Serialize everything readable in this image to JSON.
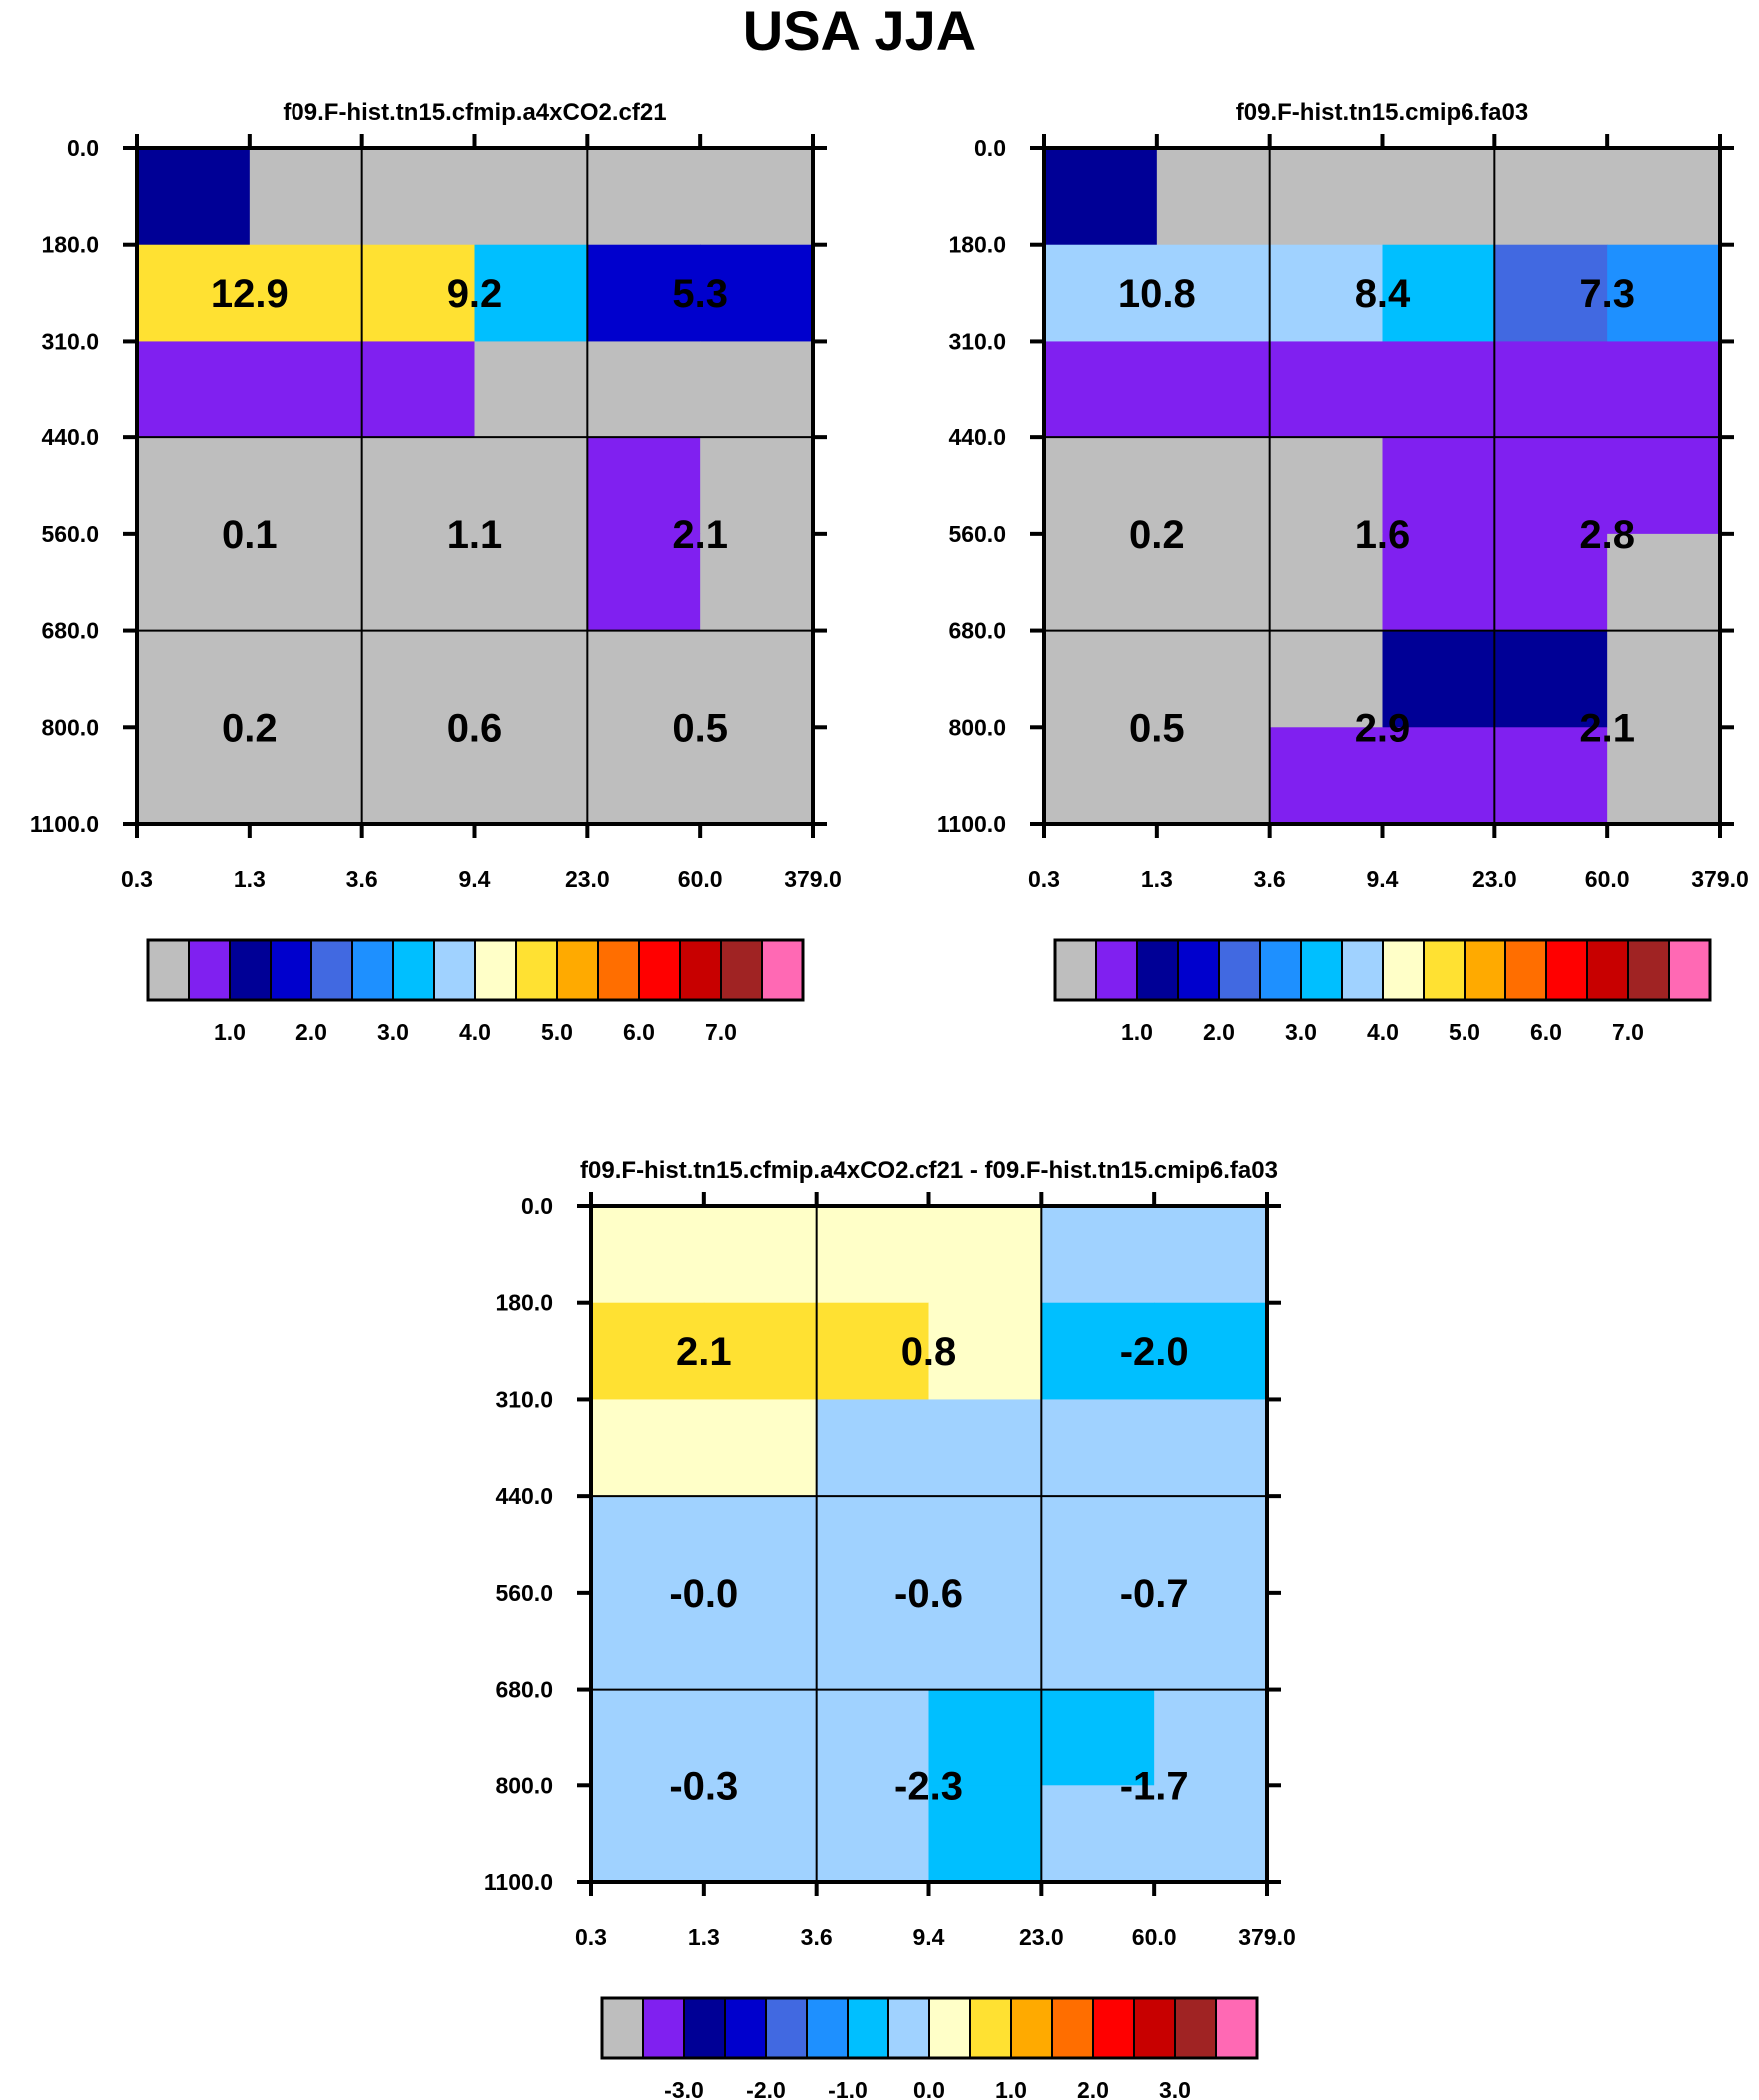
{
  "title": "USA JJA",
  "palette": [
    "#bebebe",
    "#8020f0",
    "#000096",
    "#0000cd",
    "#4169e1",
    "#1e90ff",
    "#00bfff",
    "#a0d2ff",
    "#ffffc8",
    "#ffe132",
    "#ffaa00",
    "#ff6e00",
    "#ff0000",
    "#c80000",
    "#a02323",
    "#ff69b4"
  ],
  "chart_data": [
    {
      "type": "heatmap",
      "title": "f09.F-hist.tn15.cfmip.a4xCO2.cf21",
      "x_ticks": [
        "0.3",
        "1.3",
        "3.6",
        "9.4",
        "23.0",
        "60.0",
        "379.0"
      ],
      "y_ticks": [
        "0.0",
        "180.0",
        "310.0",
        "440.0",
        "560.0",
        "680.0",
        "800.0",
        "1100.0"
      ],
      "cell_levels": [
        [
          2,
          0,
          0,
          0,
          0,
          0
        ],
        [
          9,
          9,
          9,
          6,
          3,
          3
        ],
        [
          1,
          1,
          1,
          0,
          0,
          0
        ],
        [
          0,
          0,
          0,
          0,
          1,
          0
        ],
        [
          0,
          0,
          0,
          0,
          1,
          0
        ],
        [
          0,
          0,
          0,
          0,
          0,
          0
        ],
        [
          0,
          0,
          0,
          0,
          0,
          0
        ]
      ],
      "value_labels": [
        [
          "12.9",
          "9.2",
          "5.3"
        ],
        [
          "0.1",
          "1.1",
          "2.1"
        ],
        [
          "0.2",
          "0.6",
          "0.5"
        ]
      ],
      "colorbar_labels": [
        "1.0",
        "2.0",
        "3.0",
        "4.0",
        "5.0",
        "6.0",
        "7.0"
      ]
    },
    {
      "type": "heatmap",
      "title": "f09.F-hist.tn15.cmip6.fa03",
      "x_ticks": [
        "0.3",
        "1.3",
        "3.6",
        "9.4",
        "23.0",
        "60.0",
        "379.0"
      ],
      "y_ticks": [
        "0.0",
        "180.0",
        "310.0",
        "440.0",
        "560.0",
        "680.0",
        "800.0",
        "1100.0"
      ],
      "cell_levels": [
        [
          2,
          0,
          0,
          0,
          0,
          0
        ],
        [
          7,
          7,
          7,
          6,
          4,
          5
        ],
        [
          1,
          1,
          1,
          1,
          1,
          1
        ],
        [
          0,
          0,
          0,
          1,
          1,
          1
        ],
        [
          0,
          0,
          0,
          1,
          1,
          0
        ],
        [
          0,
          0,
          0,
          2,
          2,
          0
        ],
        [
          0,
          0,
          1,
          1,
          1,
          0
        ]
      ],
      "value_labels": [
        [
          "10.8",
          "8.4",
          "7.3"
        ],
        [
          "0.2",
          "1.6",
          "2.8"
        ],
        [
          "0.5",
          "2.9",
          "2.1"
        ]
      ],
      "colorbar_labels": [
        "1.0",
        "2.0",
        "3.0",
        "4.0",
        "5.0",
        "6.0",
        "7.0"
      ]
    },
    {
      "type": "heatmap",
      "title": "f09.F-hist.tn15.cfmip.a4xCO2.cf21 - f09.F-hist.tn15.cmip6.fa03",
      "x_ticks": [
        "0.3",
        "1.3",
        "3.6",
        "9.4",
        "23.0",
        "60.0",
        "379.0"
      ],
      "y_ticks": [
        "0.0",
        "180.0",
        "310.0",
        "440.0",
        "560.0",
        "680.0",
        "800.0",
        "1100.0"
      ],
      "cell_levels": [
        [
          8,
          8,
          8,
          8,
          7,
          7
        ],
        [
          9,
          9,
          9,
          8,
          6,
          6
        ],
        [
          8,
          8,
          7,
          7,
          7,
          7
        ],
        [
          7,
          7,
          7,
          7,
          7,
          7
        ],
        [
          7,
          7,
          7,
          7,
          7,
          7
        ],
        [
          7,
          7,
          7,
          6,
          6,
          7
        ],
        [
          7,
          7,
          7,
          6,
          7,
          7
        ]
      ],
      "value_labels": [
        [
          "2.1",
          "0.8",
          "-2.0"
        ],
        [
          "-0.0",
          "-0.6",
          "-0.7"
        ],
        [
          "-0.3",
          "-2.3",
          "-1.7"
        ]
      ],
      "colorbar_labels": [
        "-3.0",
        "-2.0",
        "-1.0",
        "0.0",
        "1.0",
        "2.0",
        "3.0"
      ]
    }
  ]
}
